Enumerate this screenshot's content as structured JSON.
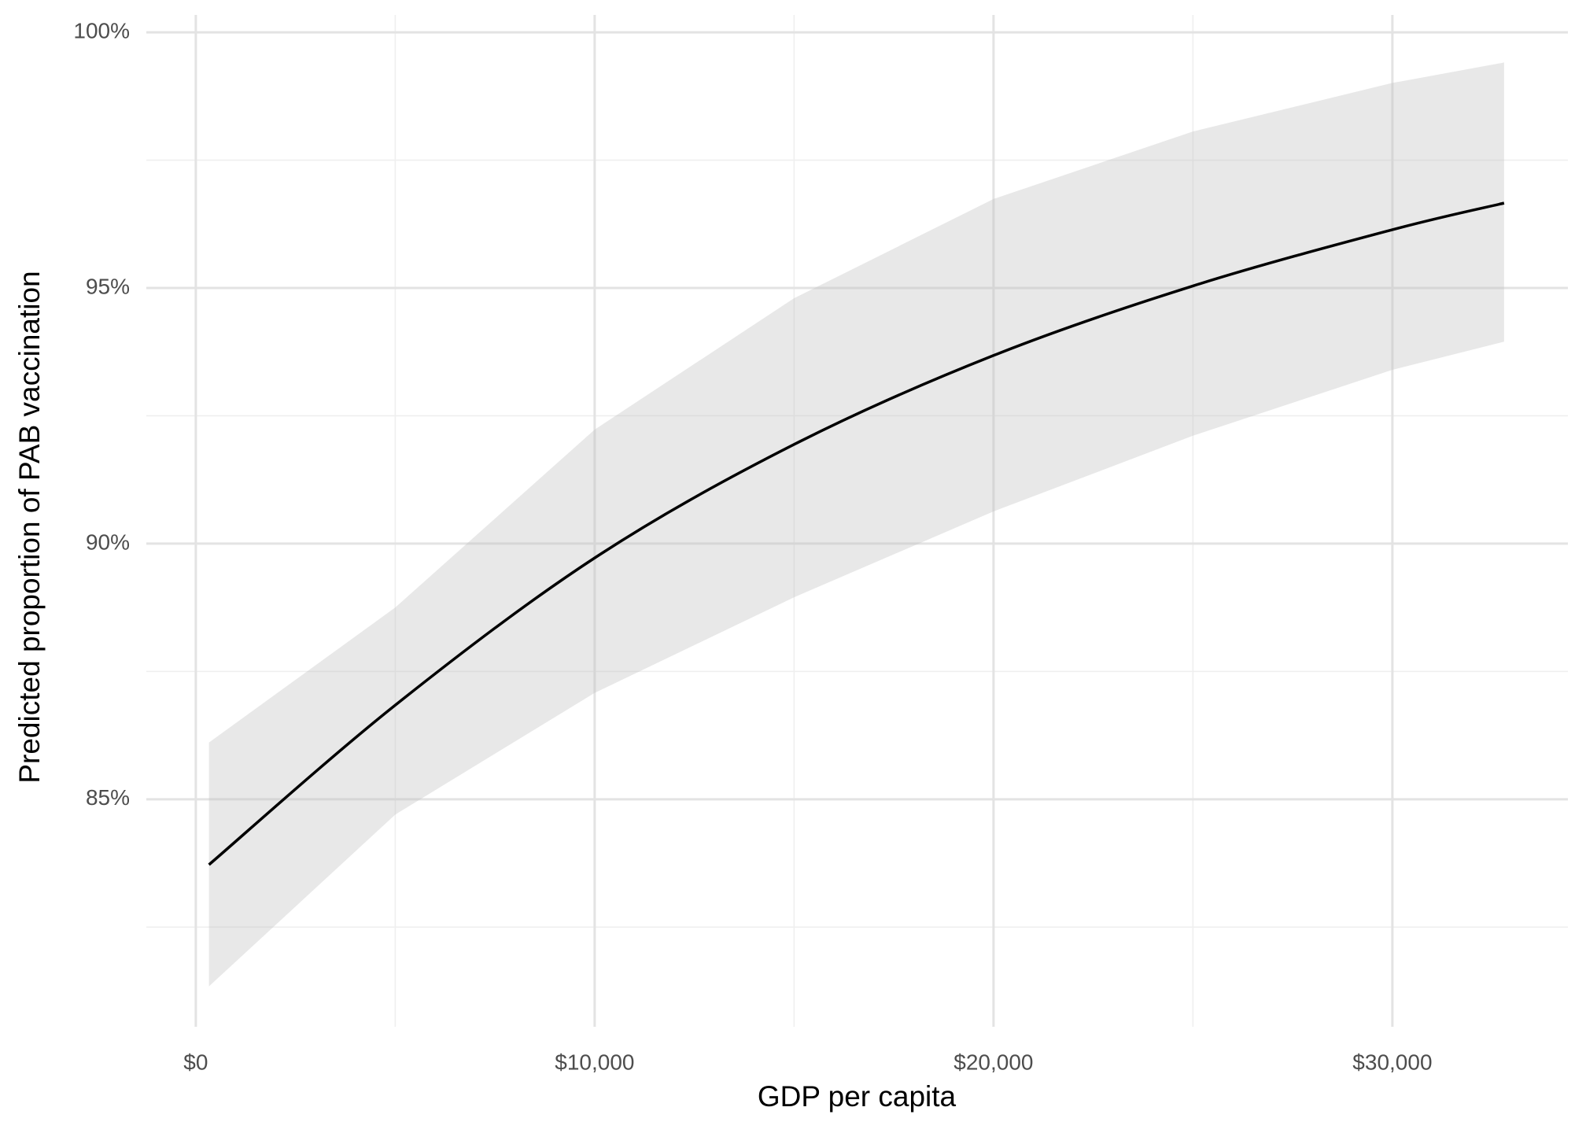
{
  "chart_data": {
    "type": "line",
    "x_label": "GDP per capita",
    "y_label": "Predicted proportion of PAB vaccination",
    "x": [
      330,
      5000,
      10000,
      15000,
      20000,
      25000,
      30000,
      32800
    ],
    "values": [
      83.72,
      86.84,
      89.72,
      91.94,
      93.68,
      95.04,
      96.14,
      96.66
    ],
    "lower": [
      81.34,
      84.7,
      87.08,
      88.95,
      90.63,
      92.11,
      93.4,
      93.95
    ],
    "upper": [
      86.11,
      88.75,
      92.23,
      94.8,
      96.74,
      98.06,
      99.01,
      99.41
    ],
    "color": "#000000",
    "band_color": "#bdbdbd",
    "xlim": [
      -1240,
      34400
    ],
    "ylim": [
      80.55,
      100.34
    ],
    "xticks": [
      {
        "value": 0,
        "label": "$0"
      },
      {
        "value": 10000,
        "label": "$10,000"
      },
      {
        "value": 20000,
        "label": "$20,000"
      },
      {
        "value": 30000,
        "label": "$30,000"
      }
    ],
    "yticks": [
      {
        "value": 85,
        "label": "85%"
      },
      {
        "value": 90,
        "label": "90%"
      },
      {
        "value": 95,
        "label": "95%"
      },
      {
        "value": 100,
        "label": "100%"
      }
    ],
    "xminor": [
      5000,
      15000,
      25000
    ],
    "yminor": [
      82.5,
      87.5,
      92.5,
      97.5
    ],
    "grid": true
  }
}
